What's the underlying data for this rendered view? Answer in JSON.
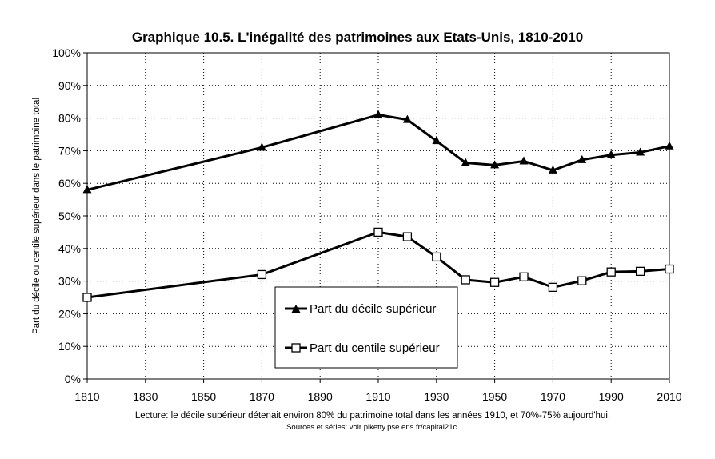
{
  "chart_data": {
    "type": "line",
    "title": "Graphique 10.5. L'inégalité des patrimoines aux Etats-Unis, 1810-2010",
    "xlabel": "",
    "ylabel": "Part du décile ou centile supérieur dans le patrimoine total",
    "xlim": [
      1810,
      2010
    ],
    "ylim": [
      0,
      1
    ],
    "x_ticks": [
      1810,
      1830,
      1850,
      1870,
      1890,
      1910,
      1930,
      1950,
      1970,
      1990,
      2010
    ],
    "y_ticks": [
      0,
      0.1,
      0.2,
      0.3,
      0.4,
      0.5,
      0.6,
      0.7,
      0.8,
      0.9,
      1.0
    ],
    "y_tick_labels": [
      "0%",
      "10%",
      "20%",
      "30%",
      "40%",
      "50%",
      "60%",
      "70%",
      "80%",
      "90%",
      "100%"
    ],
    "grid": true,
    "legend_position": "bottom-center",
    "series": [
      {
        "name": "Part du décile supérieur",
        "marker": "triangle-filled",
        "x": [
          1810,
          1870,
          1910,
          1920,
          1930,
          1940,
          1950,
          1960,
          1970,
          1980,
          1990,
          2000,
          2010
        ],
        "values": [
          0.58,
          0.71,
          0.81,
          0.795,
          0.73,
          0.663,
          0.656,
          0.668,
          0.64,
          0.672,
          0.687,
          0.695,
          0.714
        ]
      },
      {
        "name": "Part du centile supérieur",
        "marker": "square-open",
        "x": [
          1810,
          1870,
          1910,
          1920,
          1930,
          1940,
          1950,
          1960,
          1970,
          1980,
          1990,
          2000,
          2010
        ],
        "values": [
          0.25,
          0.32,
          0.45,
          0.436,
          0.374,
          0.304,
          0.296,
          0.313,
          0.281,
          0.301,
          0.328,
          0.33,
          0.337
        ]
      }
    ],
    "footnote": "Lecture: le décile supérieur détenait environ 80% du patrimoine total dans les années 1910, et 70%-75% aujourd'hui.",
    "source": "Sources et séries: voir piketty.pse.ens.fr/capital21c."
  }
}
